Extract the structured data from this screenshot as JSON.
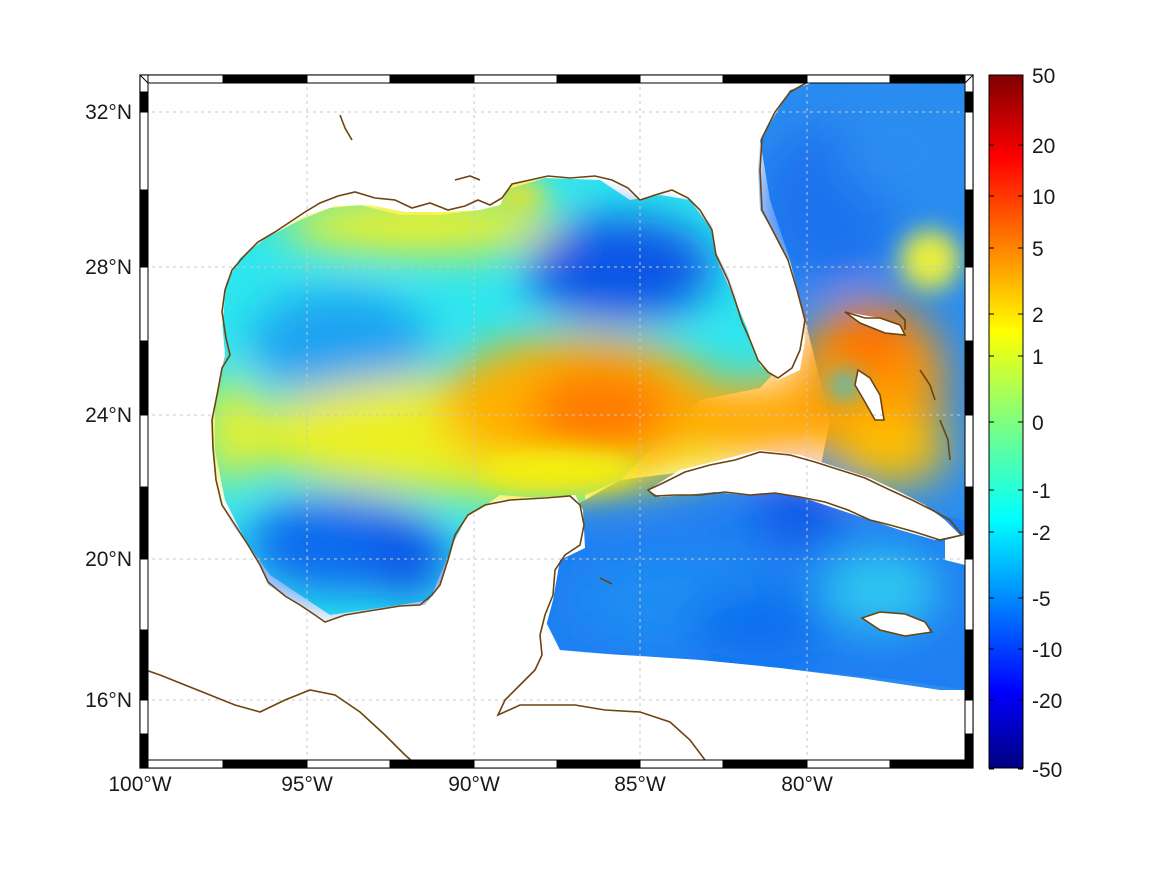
{
  "figure": {
    "type": "sea surface anomaly map",
    "projection": "mercator",
    "lon_range": [
      -100,
      -75
    ],
    "lat_range": [
      14.2,
      33
    ],
    "grid": true,
    "coastline_color": "#6b4410",
    "frame_colors": [
      "#ffffff",
      "#000000"
    ],
    "lon_ticks": [
      {
        "value": -100,
        "label": "100°W"
      },
      {
        "value": -95,
        "label": "95°W"
      },
      {
        "value": -90,
        "label": "90°W"
      },
      {
        "value": -85,
        "label": "85°W"
      },
      {
        "value": -80,
        "label": "80°W"
      }
    ],
    "lat_ticks": [
      {
        "value": 32,
        "label": "32°N"
      },
      {
        "value": 28,
        "label": "28°N"
      },
      {
        "value": 24,
        "label": "24°N"
      },
      {
        "value": 20,
        "label": "20°N"
      },
      {
        "value": 16,
        "label": "16°N"
      }
    ]
  },
  "colorbar": {
    "colormap": "jet",
    "position": "right",
    "ticks": [
      "50",
      "20",
      "10",
      "5",
      "2",
      "1",
      "0",
      "-1",
      "-2",
      "-5",
      "-10",
      "-20",
      "-50"
    ]
  }
}
